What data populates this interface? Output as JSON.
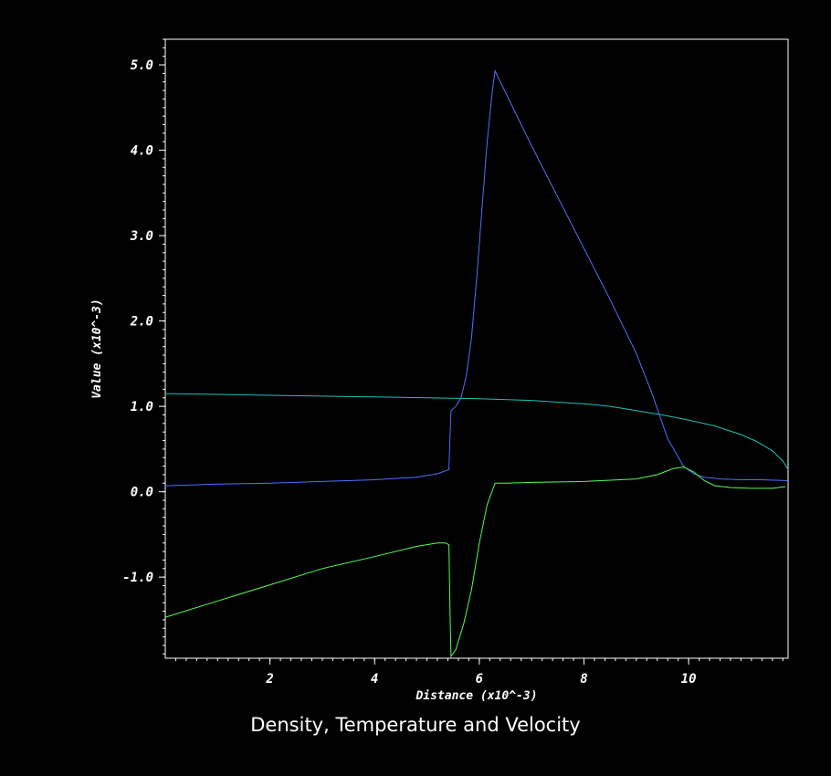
{
  "chart_data": {
    "type": "line",
    "title": "Density, Temperature and Velocity",
    "xlabel": "Distance (x10^-3)",
    "ylabel": "Value (x10^-3)",
    "xlim": [
      0,
      11.9
    ],
    "ylim": [
      -1.95,
      5.3
    ],
    "x_ticks": [
      {
        "value": 2,
        "label": "2"
      },
      {
        "value": 4,
        "label": "4"
      },
      {
        "value": 6,
        "label": "6"
      },
      {
        "value": 8,
        "label": "8"
      },
      {
        "value": 10,
        "label": "10"
      }
    ],
    "y_ticks": [
      {
        "value": -1.0,
        "label": "-1.0"
      },
      {
        "value": 0.0,
        "label": "0.0"
      },
      {
        "value": 1.0,
        "label": "1.0"
      },
      {
        "value": 2.0,
        "label": "2.0"
      },
      {
        "value": 3.0,
        "label": "3.0"
      },
      {
        "value": 4.0,
        "label": "4.0"
      },
      {
        "value": 5.0,
        "label": "5.0"
      }
    ],
    "grid": false,
    "series": [
      {
        "color": "#20c0b8",
        "x": [
          0.0,
          1.0,
          2.0,
          3.0,
          4.0,
          5.0,
          6.0,
          7.0,
          8.0,
          8.5,
          9.0,
          9.5,
          10.0,
          10.5,
          11.0,
          11.3,
          11.6,
          11.8,
          11.9
        ],
        "y": [
          1.15,
          1.14,
          1.13,
          1.12,
          1.11,
          1.1,
          1.09,
          1.07,
          1.03,
          1.0,
          0.95,
          0.9,
          0.84,
          0.77,
          0.67,
          0.59,
          0.48,
          0.36,
          0.26
        ]
      },
      {
        "color": "#5070ff",
        "x": [
          0.0,
          1.0,
          2.0,
          3.0,
          4.0,
          4.8,
          5.2,
          5.42,
          5.44,
          5.46,
          5.55,
          5.65,
          5.75,
          5.85,
          5.95,
          6.05,
          6.15,
          6.25,
          6.3,
          6.6,
          7.0,
          7.5,
          8.0,
          8.5,
          9.0,
          9.3,
          9.6,
          9.9,
          10.1,
          10.3,
          10.6,
          11.0,
          11.4,
          11.9
        ],
        "y": [
          0.07,
          0.09,
          0.1,
          0.12,
          0.14,
          0.17,
          0.21,
          0.26,
          0.65,
          0.95,
          1.0,
          1.1,
          1.35,
          1.8,
          2.5,
          3.3,
          4.1,
          4.7,
          4.93,
          4.55,
          4.05,
          3.45,
          2.85,
          2.25,
          1.62,
          1.15,
          0.62,
          0.3,
          0.21,
          0.17,
          0.15,
          0.14,
          0.14,
          0.13
        ]
      },
      {
        "color": "#50ff50",
        "x": [
          0.0,
          1.0,
          2.0,
          3.0,
          4.0,
          4.8,
          5.2,
          5.35,
          5.42,
          5.44,
          5.46,
          5.55,
          5.7,
          5.85,
          6.0,
          6.15,
          6.3,
          6.5,
          7.0,
          8.0,
          9.0,
          9.4,
          9.7,
          9.9,
          10.1,
          10.3,
          10.5,
          10.8,
          11.2,
          11.6,
          11.85
        ],
        "y": [
          -1.47,
          -1.28,
          -1.09,
          -0.9,
          -0.76,
          -0.64,
          -0.6,
          -0.6,
          -0.62,
          -1.4,
          -1.93,
          -1.85,
          -1.55,
          -1.15,
          -0.6,
          -0.15,
          0.1,
          0.1,
          0.11,
          0.12,
          0.15,
          0.2,
          0.27,
          0.29,
          0.23,
          0.13,
          0.07,
          0.05,
          0.04,
          0.04,
          0.06
        ]
      }
    ]
  }
}
